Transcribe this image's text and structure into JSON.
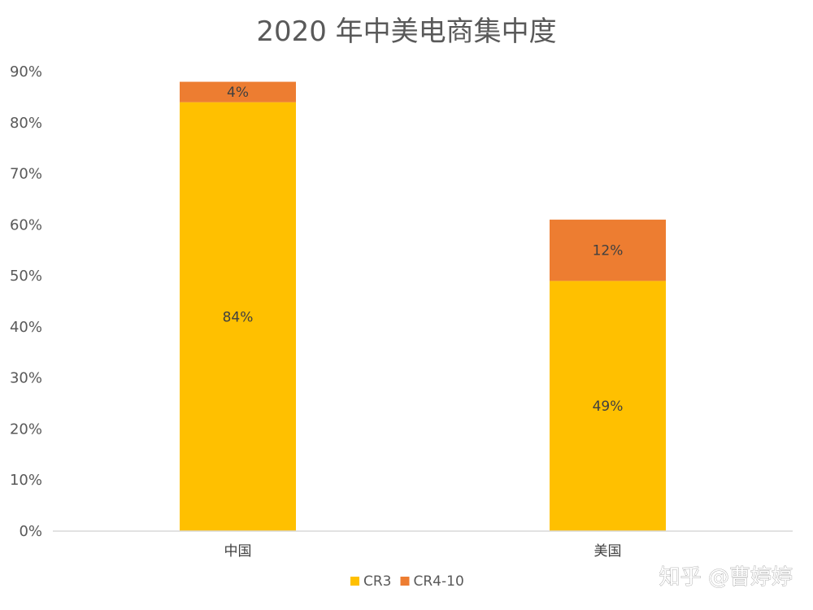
{
  "chart_data": {
    "type": "bar",
    "stacked": true,
    "title": "2020 年中美电商集中度",
    "categories": [
      "中国",
      "美国"
    ],
    "series": [
      {
        "name": "CR3",
        "values": [
          84,
          49
        ],
        "labels": [
          "84%",
          "49%"
        ],
        "color": "#FFC000"
      },
      {
        "name": "CR4-10",
        "values": [
          4,
          12
        ],
        "labels": [
          "4%",
          "12%"
        ],
        "color": "#ED7D31"
      }
    ],
    "ylim": [
      0,
      90
    ],
    "y_ticks": [
      0,
      10,
      20,
      30,
      40,
      50,
      60,
      70,
      80,
      90
    ],
    "y_tick_labels": [
      "0%",
      "10%",
      "20%",
      "30%",
      "40%",
      "50%",
      "60%",
      "70%",
      "80%",
      "90%"
    ],
    "grid": false,
    "legend_position": "bottom"
  },
  "watermark": "知乎 @曹婷婷"
}
